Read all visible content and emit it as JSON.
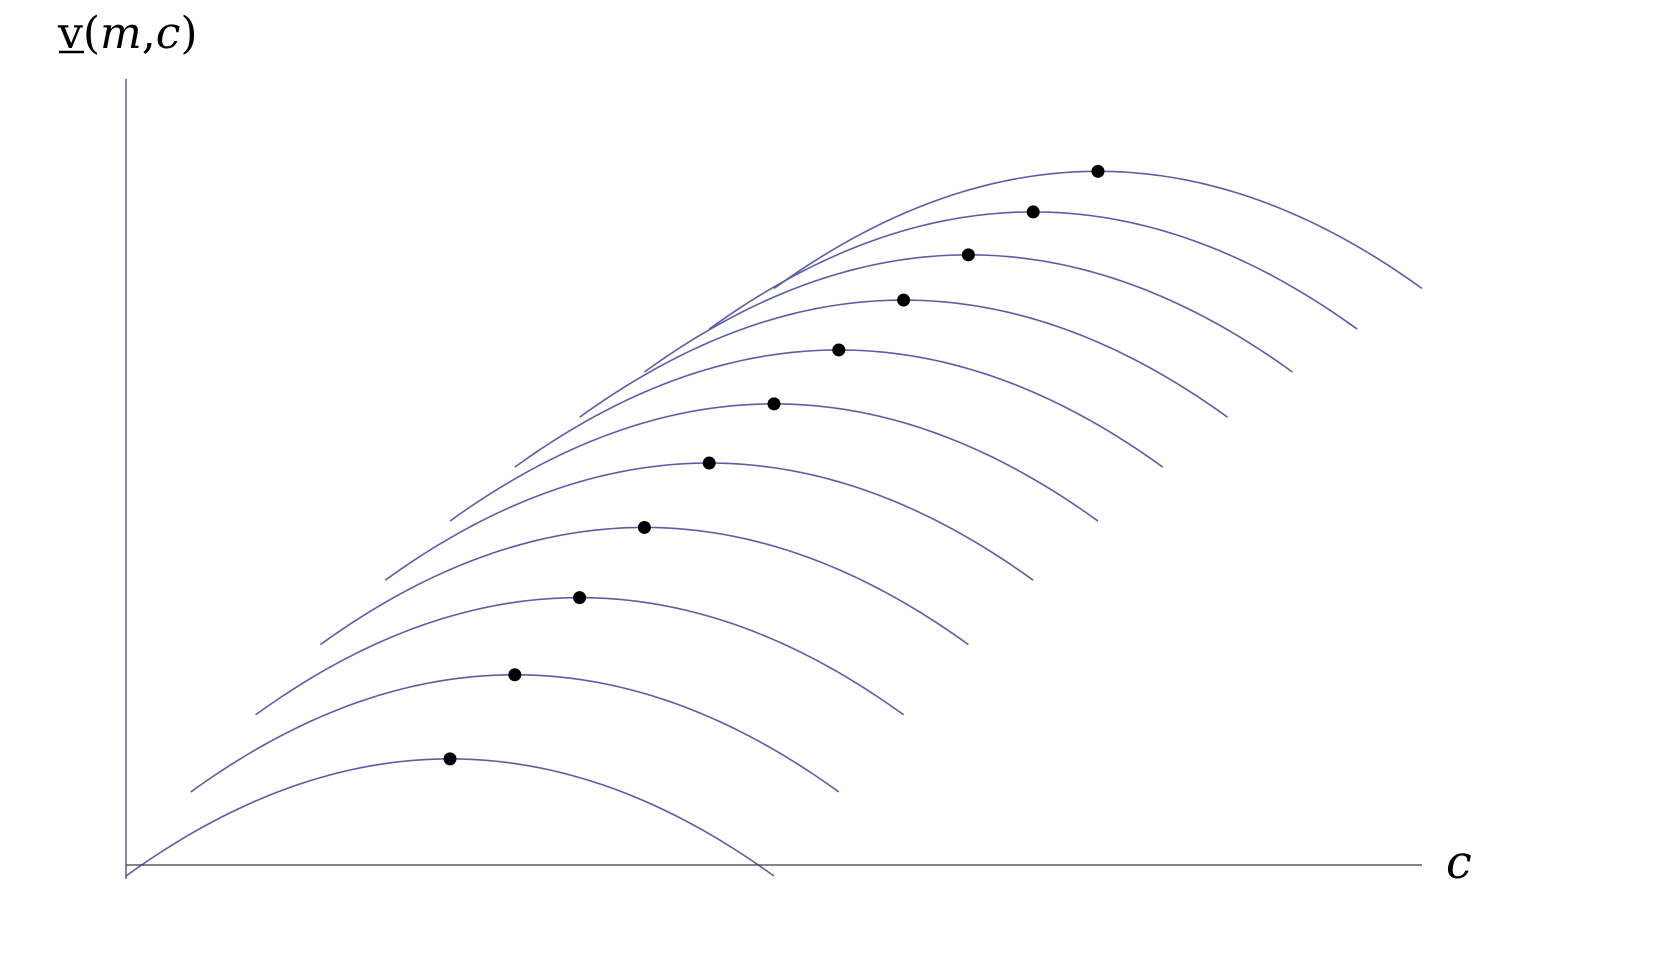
{
  "chart_data": {
    "type": "line",
    "xlabel": "c",
    "ylabel": {
      "v": "v",
      "open": "(",
      "m": "m",
      "comma": ",",
      "c": "c",
      "close": ")"
    },
    "xlim": [
      0,
      20
    ],
    "ylim": [
      0,
      12
    ],
    "grid": false,
    "ticks": false,
    "curve_color": "#5b5ea6",
    "peak_color": "#000000",
    "curve_shape": "concave parabola",
    "curve_half_width": 5,
    "curve_drop_at_half_width": 2.02,
    "series": [
      {
        "peak_c": 5,
        "peak_v": 1.83
      },
      {
        "peak_c": 6,
        "peak_v": 3.28
      },
      {
        "peak_c": 7,
        "peak_v": 4.61
      },
      {
        "peak_c": 8,
        "peak_v": 5.82
      },
      {
        "peak_c": 9,
        "peak_v": 6.93
      },
      {
        "peak_c": 10,
        "peak_v": 7.95
      },
      {
        "peak_c": 11,
        "peak_v": 8.88
      },
      {
        "peak_c": 12,
        "peak_v": 9.74
      },
      {
        "peak_c": 13,
        "peak_v": 10.52
      },
      {
        "peak_c": 14,
        "peak_v": 11.26
      },
      {
        "peak_c": 15,
        "peak_v": 11.96
      }
    ]
  }
}
